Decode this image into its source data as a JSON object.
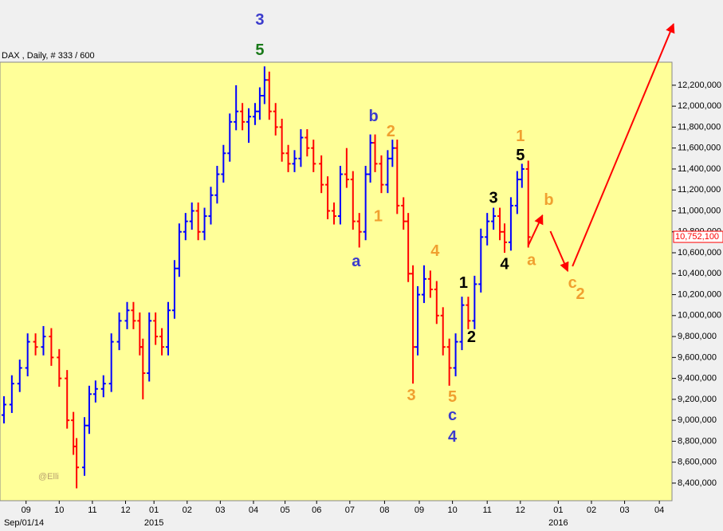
{
  "chart_data": {
    "type": "ohlc",
    "title": "DAX , Daily, # 333 / 600",
    "watermark": "@Elli",
    "up_color": "#0000ff",
    "down_color": "#ff0000",
    "background": "#ffff99",
    "grid": false,
    "xlim": [
      -2.5,
      423
    ],
    "ylim": [
      8232000,
      12420000
    ],
    "xticks": [
      {
        "value": 14,
        "label": "09"
      },
      {
        "value": 35,
        "label": "10"
      },
      {
        "value": 56,
        "label": "11"
      },
      {
        "value": 77,
        "label": "12"
      },
      {
        "value": 95,
        "label": "01"
      },
      {
        "value": 116,
        "label": "02"
      },
      {
        "value": 137,
        "label": "03"
      },
      {
        "value": 158,
        "label": "04"
      },
      {
        "value": 178,
        "label": "05"
      },
      {
        "value": 198,
        "label": "06"
      },
      {
        "value": 219,
        "label": "07"
      },
      {
        "value": 241,
        "label": "08"
      },
      {
        "value": 263,
        "label": "09"
      },
      {
        "value": 284,
        "label": "10"
      },
      {
        "value": 306,
        "label": "11"
      },
      {
        "value": 327,
        "label": "12"
      },
      {
        "value": 351,
        "label": "01"
      },
      {
        "value": 372,
        "label": "02"
      },
      {
        "value": 393,
        "label": "03"
      },
      {
        "value": 415,
        "label": "04"
      }
    ],
    "x_sublabels": [
      {
        "value": 0,
        "label": "Sep/01/14"
      },
      {
        "value": 95,
        "label": "2015"
      },
      {
        "value": 351,
        "label": "2016"
      }
    ],
    "yticks": [
      {
        "value": 8400000,
        "label": "8,400,000"
      },
      {
        "value": 8600000,
        "label": "8,600,000"
      },
      {
        "value": 8800000,
        "label": "8,800,000"
      },
      {
        "value": 9000000,
        "label": "9,000,000"
      },
      {
        "value": 9200000,
        "label": "9,200,000"
      },
      {
        "value": 9400000,
        "label": "9,400,000"
      },
      {
        "value": 9600000,
        "label": "9,600,000"
      },
      {
        "value": 9800000,
        "label": "9,800,000"
      },
      {
        "value": 10000000,
        "label": "10,000,000"
      },
      {
        "value": 10200000,
        "label": "10,200,000"
      },
      {
        "value": 10400000,
        "label": "10,400,000"
      },
      {
        "value": 10600000,
        "label": "10,600,000"
      },
      {
        "value": 10800000,
        "label": "10,800,000"
      },
      {
        "value": 11000000,
        "label": "11,000,000"
      },
      {
        "value": 11200000,
        "label": "11,200,000"
      },
      {
        "value": 11400000,
        "label": "11,400,000"
      },
      {
        "value": 11600000,
        "label": "11,600,000"
      },
      {
        "value": 11800000,
        "label": "11,800,000"
      },
      {
        "value": 12000000,
        "label": "12,000,000"
      },
      {
        "value": 12200000,
        "label": "12,200,000"
      }
    ],
    "last_price": {
      "value": 10752100,
      "label": "10,752,100"
    },
    "x": [
      0,
      5,
      10,
      15,
      20,
      25,
      30,
      35,
      40,
      44,
      46,
      51,
      54,
      58,
      63,
      68,
      73,
      78,
      82,
      86,
      88,
      92,
      96,
      100,
      104,
      108,
      111,
      115,
      119,
      123,
      127,
      131,
      135,
      139,
      143,
      147,
      151,
      155,
      159,
      162,
      165,
      168,
      172,
      176,
      180,
      184,
      188,
      192,
      196,
      201,
      205,
      209,
      213,
      217,
      221,
      225,
      229,
      232,
      235,
      239,
      243,
      246,
      249,
      253,
      256,
      259,
      262,
      266,
      270,
      274,
      278,
      282,
      286,
      290,
      294,
      298,
      302,
      306,
      310,
      314,
      317,
      321,
      325,
      328,
      332
    ],
    "open": [
      9050000,
      9150000,
      9350000,
      9500000,
      9750000,
      9700000,
      9800000,
      9600000,
      9400000,
      9000000,
      8750000,
      8550000,
      8950000,
      9250000,
      9300000,
      9350000,
      9750000,
      9950000,
      10050000,
      9950000,
      9700000,
      9450000,
      9950000,
      9800000,
      9700000,
      10050000,
      10450000,
      10800000,
      10900000,
      11000000,
      10800000,
      10950000,
      11150000,
      11350000,
      11550000,
      11850000,
      11950000,
      11850000,
      11900000,
      11950000,
      12100000,
      12250000,
      11950000,
      11800000,
      11550000,
      11450000,
      11500000,
      11700000,
      11600000,
      11450000,
      11250000,
      11000000,
      10950000,
      11350000,
      11300000,
      10900000,
      10800000,
      11350000,
      11650000,
      11450000,
      11250000,
      11500000,
      11600000,
      11050000,
      10900000,
      10400000,
      9700000,
      10200000,
      10350000,
      10250000,
      10000000,
      9700000,
      9500000,
      9750000,
      10100000,
      9950000,
      10300000,
      10750000,
      10900000,
      10950000,
      10800000,
      10700000,
      11050000,
      11300000,
      11400000
    ],
    "high": [
      9230000,
      9430000,
      9580000,
      9830000,
      9830000,
      9900000,
      9880000,
      9680000,
      9480000,
      9080000,
      8830000,
      9030000,
      9330000,
      9380000,
      9430000,
      9830000,
      10030000,
      10130000,
      10130000,
      10030000,
      9780000,
      10030000,
      10030000,
      9880000,
      10130000,
      10530000,
      10880000,
      10980000,
      11080000,
      11080000,
      11030000,
      11230000,
      11430000,
      11630000,
      11930000,
      12200000,
      12030000,
      11980000,
      12030000,
      12180000,
      12380000,
      12330000,
      12030000,
      11880000,
      11630000,
      11580000,
      11780000,
      11780000,
      11680000,
      11530000,
      11330000,
      11080000,
      11430000,
      11600000,
      11380000,
      10980000,
      11430000,
      11730000,
      11730000,
      11530000,
      11580000,
      11680000,
      11680000,
      11130000,
      10980000,
      10480000,
      10280000,
      10480000,
      10430000,
      10330000,
      10080000,
      9780000,
      9830000,
      10180000,
      10180000,
      10380000,
      10830000,
      10980000,
      11030000,
      11030000,
      10880000,
      11130000,
      11380000,
      11450000,
      11480000
    ],
    "low": [
      8970000,
      9070000,
      9270000,
      9420000,
      9620000,
      9620000,
      9520000,
      9320000,
      8920000,
      8670000,
      8350000,
      8470000,
      8870000,
      9170000,
      9220000,
      9270000,
      9670000,
      9870000,
      9870000,
      9620000,
      9200000,
      9370000,
      9720000,
      9620000,
      9620000,
      9970000,
      10370000,
      10720000,
      10820000,
      10720000,
      10720000,
      10870000,
      11070000,
      11270000,
      11470000,
      11770000,
      11770000,
      11650000,
      11820000,
      11870000,
      12020000,
      11870000,
      11720000,
      11470000,
      11370000,
      11370000,
      11420000,
      11520000,
      11370000,
      11170000,
      10920000,
      10870000,
      10870000,
      11220000,
      10820000,
      10650000,
      10720000,
      11270000,
      11370000,
      11170000,
      11170000,
      11420000,
      10970000,
      10820000,
      10320000,
      9350000,
      9620000,
      10120000,
      10170000,
      9920000,
      9620000,
      9330000,
      9420000,
      9670000,
      9870000,
      9870000,
      10220000,
      10670000,
      10820000,
      10720000,
      10600000,
      10620000,
      10970000,
      11220000,
      10650000
    ],
    "close": [
      9150000,
      9350000,
      9500000,
      9750000,
      9700000,
      9800000,
      9600000,
      9400000,
      9000000,
      8750000,
      8550000,
      8950000,
      9250000,
      9300000,
      9350000,
      9750000,
      9950000,
      10050000,
      9950000,
      9700000,
      9450000,
      9950000,
      9800000,
      9700000,
      10050000,
      10450000,
      10800000,
      10900000,
      11000000,
      10800000,
      10950000,
      11150000,
      11350000,
      11550000,
      11850000,
      11950000,
      11850000,
      11900000,
      11950000,
      12100000,
      12250000,
      11950000,
      11800000,
      11550000,
      11450000,
      11500000,
      11700000,
      11600000,
      11450000,
      11250000,
      11000000,
      10950000,
      11350000,
      11300000,
      10900000,
      10800000,
      11350000,
      11650000,
      11450000,
      11250000,
      11500000,
      11600000,
      11050000,
      10900000,
      10400000,
      9700000,
      10200000,
      10350000,
      10250000,
      10000000,
      9700000,
      9500000,
      9750000,
      10100000,
      9950000,
      10300000,
      10750000,
      10900000,
      10950000,
      10800000,
      10700000,
      11050000,
      11300000,
      11400000,
      10750000
    ],
    "annotations": [
      {
        "text": "3",
        "color": "#3b3bcc",
        "x": 162,
        "y": 12817000
      },
      {
        "text": "5",
        "color": "#1a7a1a",
        "x": 162,
        "y": 12527000
      },
      {
        "text": "b",
        "color": "#3b3bcc",
        "x": 234,
        "y": 11895000
      },
      {
        "text": "2",
        "color": "#f0a030",
        "x": 245,
        "y": 11751000
      },
      {
        "text": "1",
        "color": "#f0a030",
        "x": 237,
        "y": 10943000
      },
      {
        "text": "a",
        "color": "#3b3bcc",
        "x": 223,
        "y": 10509000
      },
      {
        "text": "4",
        "color": "#f0a030",
        "x": 273,
        "y": 10608000
      },
      {
        "text": "3",
        "color": "#f0a030",
        "x": 258,
        "y": 9230000
      },
      {
        "text": "5",
        "color": "#f0a030",
        "x": 284,
        "y": 9215000
      },
      {
        "text": "c",
        "color": "#3b3bcc",
        "x": 284,
        "y": 9040000
      },
      {
        "text": "4",
        "color": "#3b3bcc",
        "x": 284,
        "y": 8834000
      },
      {
        "text": "1",
        "color": "#000000",
        "x": 291,
        "y": 10304000
      },
      {
        "text": "2",
        "color": "#000000",
        "x": 296,
        "y": 9786000
      },
      {
        "text": "3",
        "color": "#000000",
        "x": 310,
        "y": 11118000
      },
      {
        "text": "4",
        "color": "#000000",
        "x": 317,
        "y": 10486000
      },
      {
        "text": "5",
        "color": "#000000",
        "x": 327,
        "y": 11522000
      },
      {
        "text": "1",
        "color": "#f0a030",
        "x": 327,
        "y": 11705000
      },
      {
        "text": "b",
        "color": "#f0a030",
        "x": 345,
        "y": 11096000
      },
      {
        "text": "a",
        "color": "#f0a030",
        "x": 334,
        "y": 10524000
      },
      {
        "text": "c",
        "color": "#f0a030",
        "x": 360,
        "y": 10304000
      },
      {
        "text": "2",
        "color": "#f0a030",
        "x": 365,
        "y": 10197000
      }
    ],
    "arrows": [
      {
        "color": "#ff0000",
        "x": [
          332,
          341
        ],
        "y": [
          10669000,
          10958000
        ]
      },
      {
        "color": "#ff0000",
        "x": [
          346,
          357
        ],
        "y": [
          10806000,
          10425000
        ]
      },
      {
        "color": "#ff0000",
        "x": [
          360,
          424
        ],
        "y": [
          10471000,
          12785000
        ]
      }
    ]
  }
}
